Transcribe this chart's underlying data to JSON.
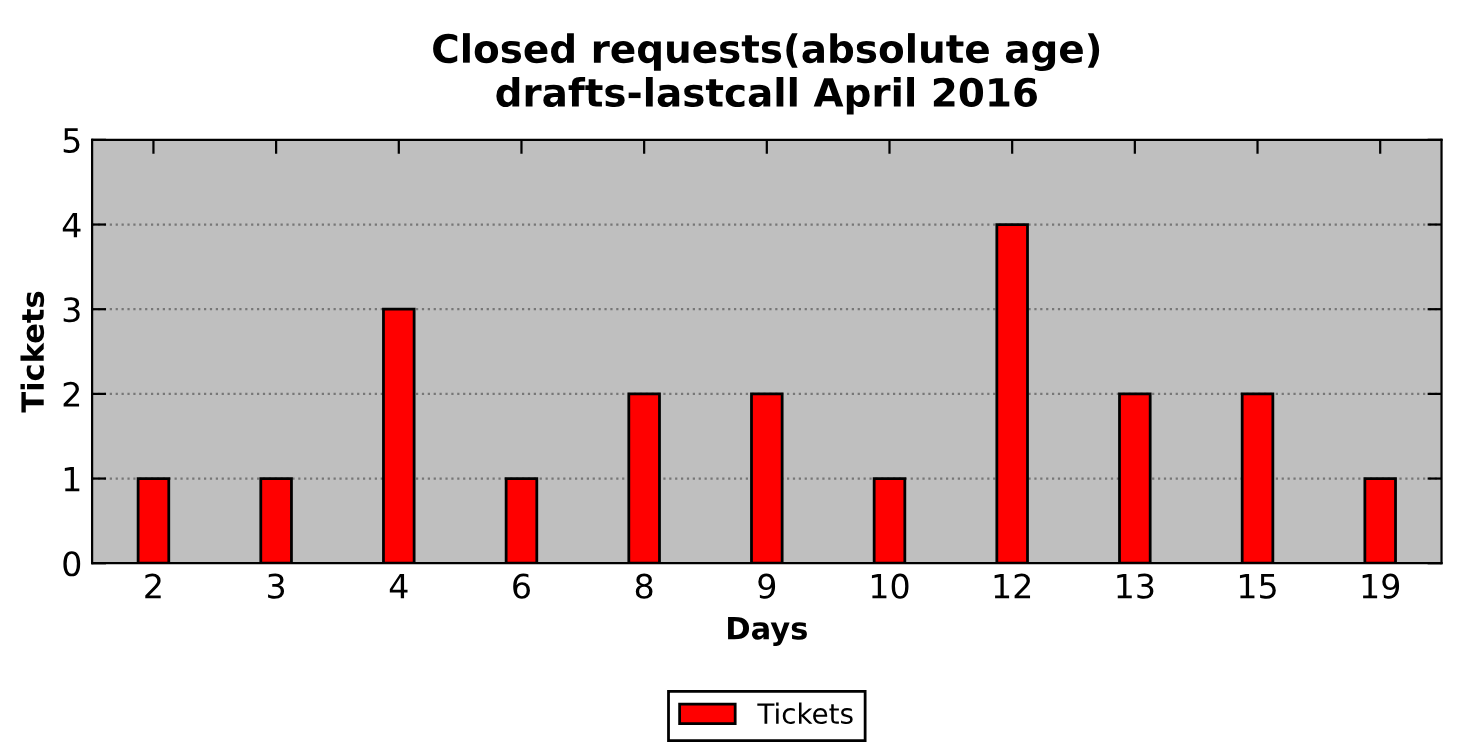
{
  "chart_data": {
    "type": "bar",
    "title": "Closed requests(absolute age)\ndrafts-lastcall April 2016",
    "xlabel": "Days",
    "ylabel": "Tickets",
    "categories": [
      "2",
      "3",
      "4",
      "6",
      "8",
      "9",
      "10",
      "12",
      "13",
      "15",
      "19"
    ],
    "series": [
      {
        "name": "Tickets",
        "color": "#ff0000",
        "values": [
          1,
          1,
          3,
          1,
          2,
          2,
          1,
          4,
          2,
          2,
          1
        ]
      }
    ],
    "ylim": [
      0,
      5
    ],
    "yticks": [
      0,
      1,
      2,
      3,
      4,
      5
    ],
    "grid": "y",
    "legend": "bottom"
  }
}
